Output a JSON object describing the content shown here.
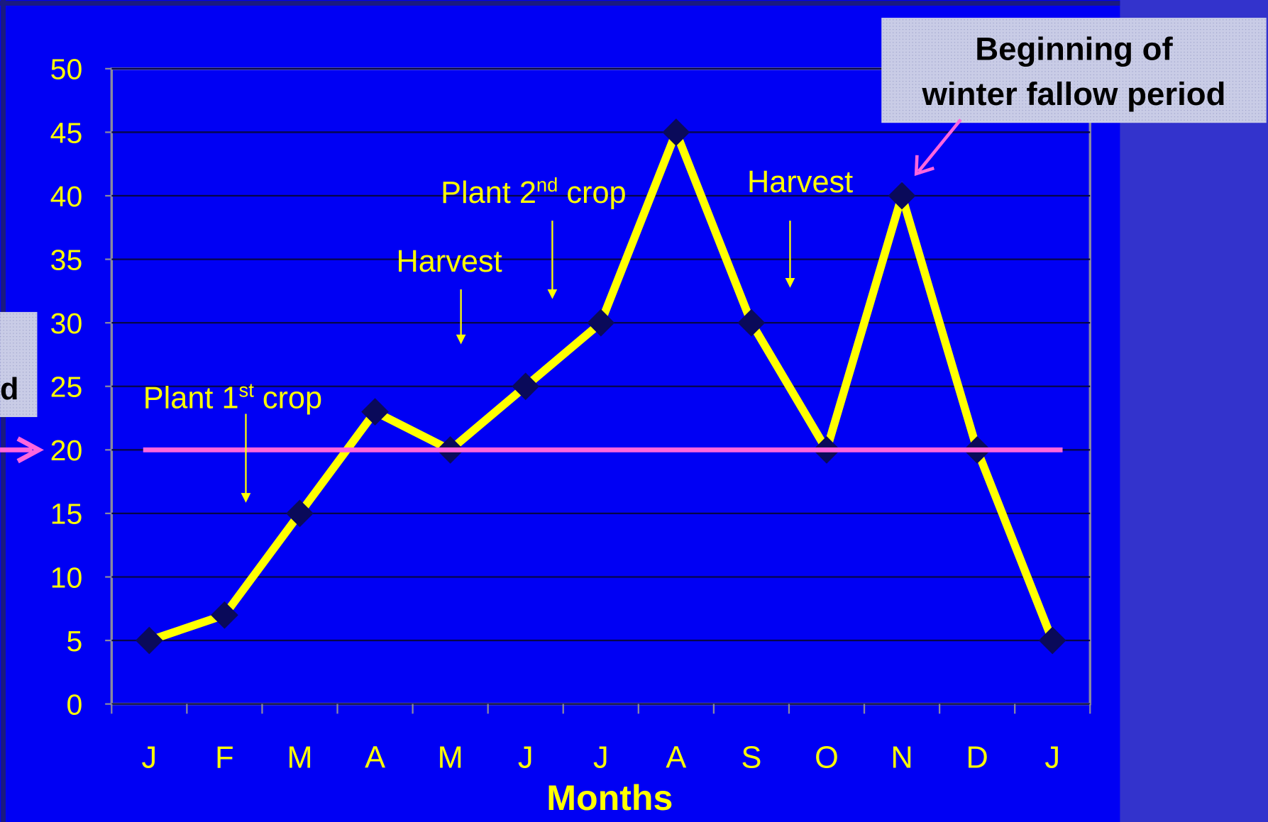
{
  "chart_data": {
    "type": "line",
    "categories": [
      "J",
      "F",
      "M",
      "A",
      "M",
      "J",
      "J",
      "A",
      "S",
      "O",
      "N",
      "D",
      "J"
    ],
    "series": [
      {
        "color": "#ffff00",
        "marker_color": "#0a0a5a",
        "values": [
          5,
          7,
          15,
          23,
          20,
          25,
          30,
          45,
          30,
          20,
          40,
          20,
          5
        ]
      }
    ],
    "ylim": [
      0,
      50
    ],
    "yticks": [
      0,
      5,
      10,
      15,
      20,
      25,
      30,
      35,
      40,
      45,
      50
    ],
    "grid": true,
    "x_label": "Months",
    "threshold": {
      "value": 20,
      "color": "#ff66dd",
      "label": "d"
    },
    "annotations": [
      {
        "pre": "Plant 1",
        "sup": "st",
        "post": " crop"
      },
      {
        "pre": "Harvest"
      },
      {
        "pre": "Plant 2",
        "sup": "nd",
        "post": " crop"
      },
      {
        "pre": "Harvest"
      },
      {
        "lines": [
          "Beginning of",
          "winter fallow period"
        ]
      }
    ]
  }
}
